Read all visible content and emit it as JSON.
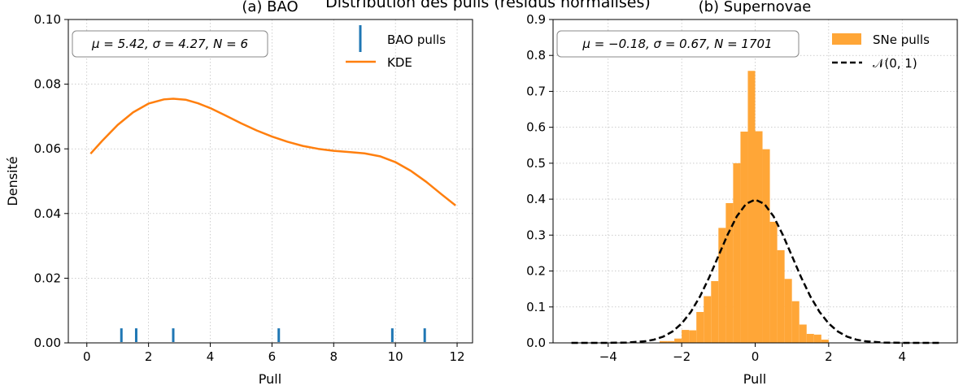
{
  "suptitle": "Distribution des pulls (résidus normalisés)",
  "chart_data": [
    {
      "type": "line",
      "title": "(a) BAO",
      "xlabel": "Pull",
      "ylabel": "Densité",
      "xlim": [
        -0.6,
        12.5
      ],
      "ylim": [
        0,
        0.1
      ],
      "xticks": [
        0,
        2,
        4,
        6,
        8,
        10,
        12
      ],
      "xtick_labels": [
        "0",
        "2",
        "4",
        "6",
        "8",
        "10",
        "12"
      ],
      "yticks": [
        0,
        0.02,
        0.04,
        0.06,
        0.08,
        0.1
      ],
      "ytick_labels": [
        "0.00",
        "0.02",
        "0.04",
        "0.06",
        "0.08",
        "0.10"
      ],
      "grid": true,
      "legend_position": "top-right",
      "stats_text": "μ = 5.42,  σ = 4.27,  N = 6",
      "series": [
        {
          "name": "BAO pulls",
          "kind": "rug",
          "color": "#1f77b4",
          "x": [
            1.12,
            1.6,
            2.8,
            6.22,
            9.9,
            10.95
          ],
          "height": 0.0045
        },
        {
          "name": "KDE",
          "kind": "line",
          "color": "#ff7f0e",
          "x": [
            0.12,
            0.5,
            1.0,
            1.5,
            2.0,
            2.5,
            2.8,
            3.2,
            3.6,
            4.0,
            4.5,
            5.0,
            5.5,
            6.0,
            6.5,
            7.0,
            7.5,
            8.0,
            8.5,
            9.0,
            9.5,
            10.0,
            10.5,
            11.0,
            11.5,
            11.95
          ],
          "y": [
            0.0585,
            0.0625,
            0.0674,
            0.0713,
            0.074,
            0.0753,
            0.0755,
            0.0752,
            0.0741,
            0.0726,
            0.0703,
            0.0679,
            0.0657,
            0.0638,
            0.0622,
            0.0609,
            0.06,
            0.0594,
            0.059,
            0.0586,
            0.0577,
            0.0559,
            0.0532,
            0.0498,
            0.0459,
            0.0425
          ]
        }
      ]
    },
    {
      "type": "bar",
      "title": "(b) Supernovae",
      "xlabel": "Pull",
      "ylabel": "",
      "xlim": [
        -5.5,
        5.5
      ],
      "ylim": [
        0,
        0.9
      ],
      "xticks": [
        -4,
        -2,
        0,
        2,
        4
      ],
      "xtick_labels": [
        "−4",
        "−2",
        "0",
        "2",
        "4"
      ],
      "yticks": [
        0,
        0.1,
        0.2,
        0.3,
        0.4,
        0.5,
        0.6,
        0.7,
        0.8,
        0.9
      ],
      "ytick_labels": [
        "0.0",
        "0.1",
        "0.2",
        "0.3",
        "0.4",
        "0.5",
        "0.6",
        "0.7",
        "0.8",
        "0.9"
      ],
      "grid": true,
      "legend_position": "top-right",
      "stats_text": "μ = −0.18,  σ = 0.67,  N = 1701",
      "series": [
        {
          "name": "SNe pulls",
          "kind": "histogram",
          "color": "#ffa637",
          "bin_width": 0.2,
          "bin_left": [
            -2.6,
            -2.4,
            -2.2,
            -2.0,
            -1.8,
            -1.6,
            -1.4,
            -1.2,
            -1.0,
            -0.8,
            -0.6,
            -0.4,
            -0.2,
            0.0,
            0.2,
            0.4,
            0.6,
            0.8,
            1.0,
            1.2,
            1.4,
            1.6,
            1.8
          ],
          "values": [
            0.005,
            0.005,
            0.012,
            0.036,
            0.035,
            0.086,
            0.13,
            0.172,
            0.32,
            0.389,
            0.5,
            0.588,
            0.757,
            0.589,
            0.539,
            0.337,
            0.258,
            0.178,
            0.116,
            0.051,
            0.025,
            0.023,
            0.009
          ]
        },
        {
          "name": "𝒩(0, 1)",
          "kind": "line",
          "color": "#000000",
          "dashed": true,
          "x": [
            -5,
            -4.5,
            -4,
            -3.5,
            -3,
            -2.75,
            -2.5,
            -2.25,
            -2,
            -1.75,
            -1.5,
            -1.25,
            -1,
            -0.75,
            -0.5,
            -0.25,
            0,
            0.25,
            0.5,
            0.75,
            1,
            1.25,
            1.5,
            1.75,
            2,
            2.25,
            2.5,
            2.75,
            3,
            3.5,
            4,
            4.5,
            5
          ],
          "y": [
            0.0,
            0.0,
            0.0001,
            0.0009,
            0.0044,
            0.0091,
            0.0175,
            0.0317,
            0.054,
            0.0863,
            0.1295,
            0.1826,
            0.242,
            0.3011,
            0.3521,
            0.3867,
            0.3989,
            0.3867,
            0.3521,
            0.3011,
            0.242,
            0.1826,
            0.1295,
            0.0863,
            0.054,
            0.0317,
            0.0175,
            0.0091,
            0.0044,
            0.0009,
            0.0001,
            0.0,
            0.0
          ]
        }
      ]
    }
  ]
}
